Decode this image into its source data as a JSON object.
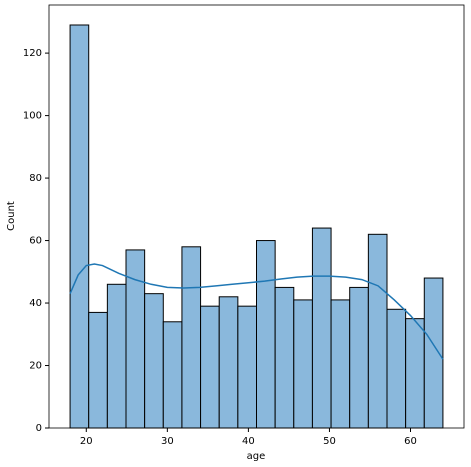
{
  "chart_data": {
    "type": "histogram",
    "x_label": "age",
    "y_label": "Count",
    "bins": [
      18,
      20.3,
      22.6,
      24.9,
      27.2,
      29.5,
      31.8,
      34.1,
      36.4,
      38.7,
      41,
      43.3,
      45.6,
      47.9,
      50.2,
      52.5,
      54.8,
      57.1,
      59.4,
      61.7,
      64
    ],
    "values": [
      129,
      37,
      46,
      57,
      43,
      34,
      58,
      39,
      42,
      39,
      60,
      45,
      41,
      64,
      41,
      45,
      62,
      38,
      35,
      48
    ],
    "color": "#8ab8dc",
    "kde": {
      "color": "#1f77b4",
      "x": [
        18,
        19,
        20,
        21,
        22,
        24,
        26,
        28,
        30,
        32,
        34,
        36,
        38,
        40,
        42,
        44,
        46,
        48,
        50,
        52,
        54,
        56,
        58,
        60,
        62,
        64
      ],
      "values": [
        43,
        49,
        52,
        52.5,
        52,
        49.5,
        47.5,
        46,
        45,
        44.8,
        45,
        45.5,
        46,
        46.5,
        47,
        47.7,
        48.3,
        48.6,
        48.6,
        48.3,
        47.5,
        45.5,
        41,
        36,
        30,
        22
      ]
    },
    "xlim": [
      15.4,
      66.6
    ],
    "xticks": [
      20,
      30,
      40,
      50,
      60
    ],
    "ylim": [
      0,
      135.4
    ],
    "yticks": [
      0,
      20,
      40,
      60,
      80,
      100,
      120
    ]
  }
}
